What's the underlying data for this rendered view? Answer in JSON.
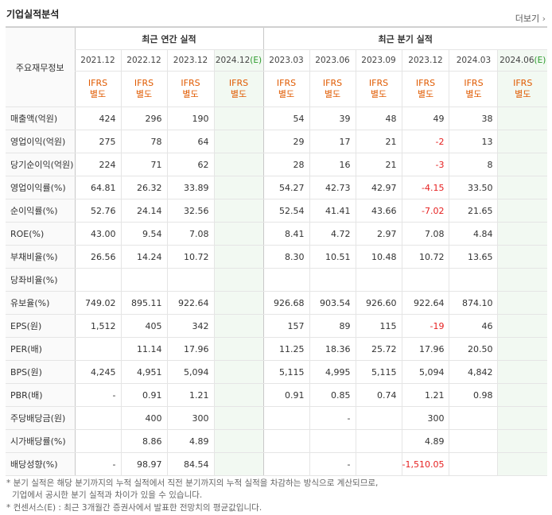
{
  "title": "기업실적분석",
  "more_label": "더보기",
  "more_icon": "chevron-right-icon",
  "headers": {
    "label_column": "주요재무정보",
    "annual_group": "최근 연간 실적",
    "quarter_group": "최근 분기 실적",
    "annual_periods": [
      "2021.12",
      "2022.12",
      "2023.12",
      "2024.12(E)"
    ],
    "quarter_periods": [
      "2023.03",
      "2023.06",
      "2023.09",
      "2023.12",
      "2024.03",
      "2024.06(E)"
    ],
    "ifrs_line1": "IFRS",
    "ifrs_line2": "별도"
  },
  "rows": [
    {
      "label": "매출액(억원)",
      "annual": [
        "424",
        "296",
        "190",
        ""
      ],
      "quarter": [
        "54",
        "39",
        "48",
        "49",
        "38",
        ""
      ],
      "group_start": true
    },
    {
      "label": "영업이익(억원)",
      "annual": [
        "275",
        "78",
        "64",
        ""
      ],
      "quarter": [
        "29",
        "17",
        "21",
        "-2",
        "13",
        ""
      ]
    },
    {
      "label": "당기순이익(억원)",
      "annual": [
        "224",
        "71",
        "62",
        ""
      ],
      "quarter": [
        "28",
        "16",
        "21",
        "-3",
        "8",
        ""
      ]
    },
    {
      "label": "영업이익률(%)",
      "annual": [
        "64.81",
        "26.32",
        "33.89",
        ""
      ],
      "quarter": [
        "54.27",
        "42.73",
        "42.97",
        "-4.15",
        "33.50",
        ""
      ],
      "group_start": true
    },
    {
      "label": "순이익률(%)",
      "annual": [
        "52.76",
        "24.14",
        "32.56",
        ""
      ],
      "quarter": [
        "52.54",
        "41.41",
        "43.66",
        "-7.02",
        "21.65",
        ""
      ]
    },
    {
      "label": "ROE(%)",
      "annual": [
        "43.00",
        "9.54",
        "7.08",
        ""
      ],
      "quarter": [
        "8.41",
        "4.72",
        "2.97",
        "7.08",
        "4.84",
        ""
      ]
    },
    {
      "label": "부채비율(%)",
      "annual": [
        "26.56",
        "14.24",
        "10.72",
        ""
      ],
      "quarter": [
        "8.30",
        "10.51",
        "10.48",
        "10.72",
        "13.65",
        ""
      ],
      "group_start": true
    },
    {
      "label": "당좌비율(%)",
      "annual": [
        "",
        "",
        "",
        ""
      ],
      "quarter": [
        "",
        "",
        "",
        "",
        "",
        ""
      ]
    },
    {
      "label": "유보율(%)",
      "annual": [
        "749.02",
        "895.11",
        "922.64",
        ""
      ],
      "quarter": [
        "926.68",
        "903.54",
        "926.60",
        "922.64",
        "874.10",
        ""
      ]
    },
    {
      "label": "EPS(원)",
      "annual": [
        "1,512",
        "405",
        "342",
        ""
      ],
      "quarter": [
        "157",
        "89",
        "115",
        "-19",
        "46",
        ""
      ],
      "group_start": true
    },
    {
      "label": "PER(배)",
      "annual": [
        "",
        "11.14",
        "17.96",
        ""
      ],
      "quarter": [
        "11.25",
        "18.36",
        "25.72",
        "17.96",
        "20.50",
        ""
      ]
    },
    {
      "label": "BPS(원)",
      "annual": [
        "4,245",
        "4,951",
        "5,094",
        ""
      ],
      "quarter": [
        "5,115",
        "4,995",
        "5,115",
        "5,094",
        "4,842",
        ""
      ]
    },
    {
      "label": "PBR(배)",
      "annual": [
        "-",
        "0.91",
        "1.21",
        ""
      ],
      "quarter": [
        "0.91",
        "0.85",
        "0.74",
        "1.21",
        "0.98",
        ""
      ]
    },
    {
      "label": "주당배당금(원)",
      "annual": [
        "",
        "400",
        "300",
        ""
      ],
      "quarter": [
        "",
        "-",
        "",
        "300",
        "",
        ""
      ],
      "group_start": true
    },
    {
      "label": "시가배당률(%)",
      "annual": [
        "",
        "8.86",
        "4.89",
        ""
      ],
      "quarter": [
        "",
        "",
        "",
        "4.89",
        "",
        ""
      ]
    },
    {
      "label": "배당성향(%)",
      "annual": [
        "-",
        "98.97",
        "84.54",
        ""
      ],
      "quarter": [
        "",
        "-",
        "",
        "-1,510.05",
        "",
        ""
      ]
    }
  ],
  "footnotes": [
    "* 분기 실적은 해당 분기까지의 누적 실적에서 직전 분기까지의 누적 실적을 차감하는 방식으로 계산되므로,",
    "기업에서 공시한 분기 실적과 차이가 있을 수 있습니다.",
    "* 컨센서스(E) : 최근 3개월간 증권사에서 발표한 전망치의 평균값입니다."
  ],
  "colors": {
    "ifrs": "#e05a00",
    "negative": "#e62020",
    "estimate_bg": "#f2f9f2",
    "estimate_mark": "#2a9a2a"
  }
}
